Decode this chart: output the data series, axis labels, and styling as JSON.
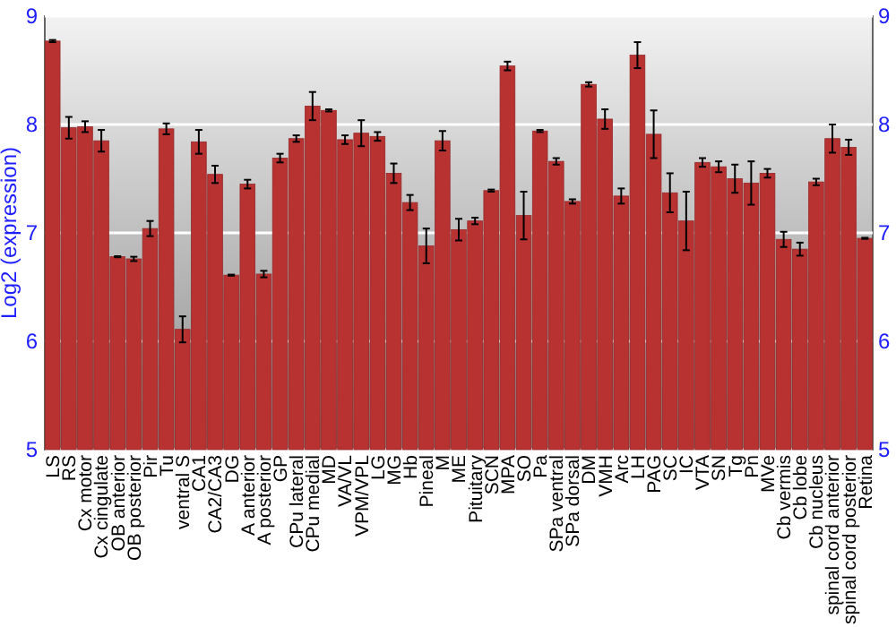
{
  "chart_data": {
    "type": "bar",
    "ylabel": "Log2 (expression)",
    "categories": [
      "LS",
      "RS",
      "Cx motor",
      "Cx cingulate",
      "OB anterior",
      "OB posterior",
      "Pir",
      "Tu",
      "ventral S",
      "CA1",
      "CA2/CA3",
      "DG",
      "A anterior",
      "A posterior",
      "GP",
      "CPu lateral",
      "CPu medial",
      "MD",
      "VA/VL",
      "VPM/VPL",
      "LG",
      "MG",
      "Hb",
      "Pineal",
      "M",
      "ME",
      "Pituitary",
      "SCN",
      "MPA",
      "SO",
      "Pa",
      "SPa ventral",
      "SPa dorsal",
      "DM",
      "VMH",
      "Arc",
      "LH",
      "PAG",
      "SC",
      "IC",
      "VTA",
      "SN",
      "Tg",
      "Pn",
      "MVe",
      "Cb vermis",
      "Cb lobe",
      "Cb nucleus",
      "spinal cord anterior",
      "spinal cord posterior",
      "Retina"
    ],
    "values": [
      8.77,
      7.97,
      7.98,
      7.85,
      6.78,
      6.76,
      7.04,
      7.96,
      6.11,
      7.84,
      7.54,
      6.61,
      7.45,
      6.62,
      7.69,
      7.87,
      8.17,
      8.13,
      7.86,
      7.92,
      7.89,
      7.55,
      7.28,
      6.88,
      7.85,
      7.03,
      7.11,
      7.39,
      8.54,
      7.16,
      7.94,
      7.66,
      7.29,
      8.37,
      8.05,
      7.34,
      8.64,
      7.91,
      7.37,
      7.11,
      7.65,
      7.61,
      7.5,
      7.46,
      7.55,
      6.94,
      6.85,
      7.47,
      7.87,
      7.79,
      6.95
    ],
    "errors": [
      0.01,
      0.1,
      0.05,
      0.1,
      0.005,
      0.02,
      0.07,
      0.05,
      0.12,
      0.11,
      0.08,
      0.005,
      0.04,
      0.03,
      0.04,
      0.03,
      0.13,
      0.01,
      0.04,
      0.12,
      0.04,
      0.09,
      0.07,
      0.16,
      0.09,
      0.1,
      0.03,
      0.01,
      0.04,
      0.22,
      0.01,
      0.03,
      0.02,
      0.02,
      0.09,
      0.07,
      0.12,
      0.22,
      0.18,
      0.27,
      0.04,
      0.05,
      0.13,
      0.2,
      0.04,
      0.07,
      0.06,
      0.03,
      0.13,
      0.07,
      0.005
    ],
    "color": "#b83232",
    "ylim": [
      5,
      9
    ],
    "yticks": [
      5,
      6,
      7,
      8,
      9
    ],
    "y2lim": [
      5,
      9
    ],
    "y2ticks": [
      5,
      6,
      7,
      8,
      9
    ],
    "grid": "y"
  }
}
